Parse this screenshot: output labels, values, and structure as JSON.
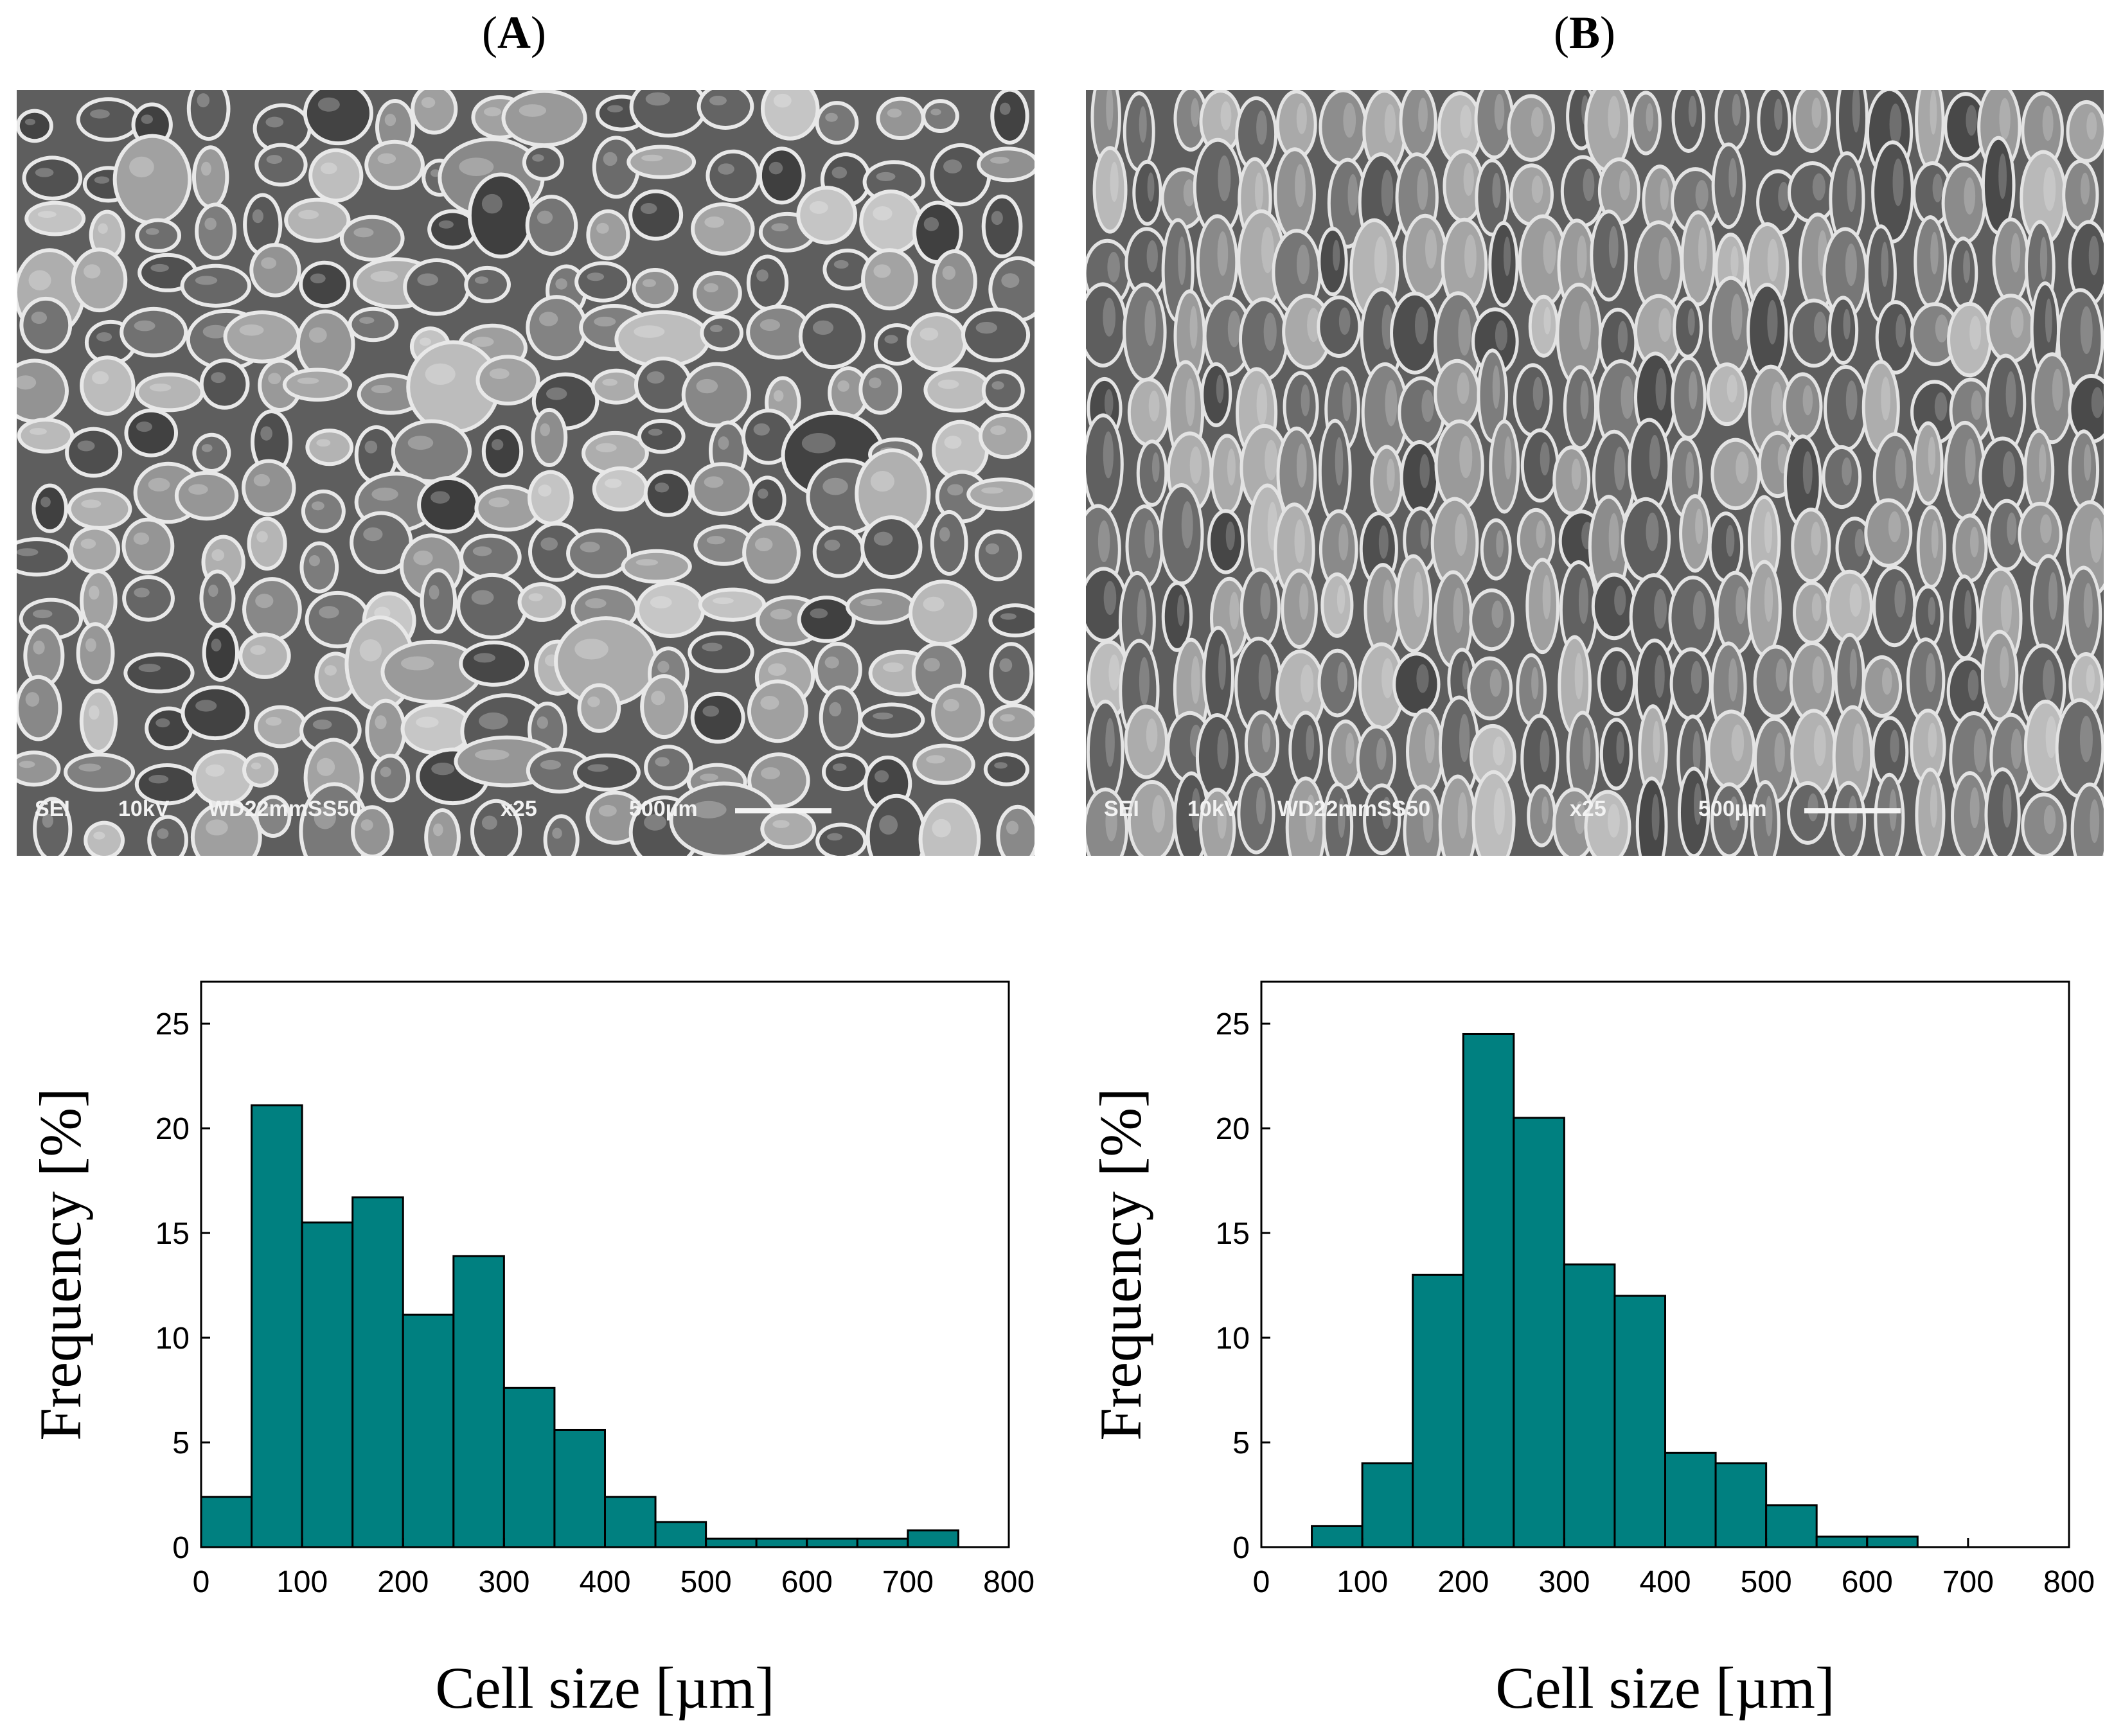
{
  "panels": [
    {
      "label": "A",
      "sem": {
        "detector": "SEI",
        "voltage": "10kV",
        "working_distance": "WD22mmSS50",
        "magnification": "x25",
        "scale": "500µm",
        "texture": "round"
      }
    },
    {
      "label": "B",
      "sem": {
        "detector": "SEI",
        "voltage": "10kV",
        "working_distance": "WD22mmSS50",
        "magnification": "x25",
        "scale": "500µm",
        "texture": "elongated"
      }
    }
  ],
  "colors": {
    "bar_fill": "#008080",
    "bar_stroke": "#000000",
    "axis": "#000000"
  },
  "chart_data": [
    {
      "type": "bar",
      "title": "",
      "xlabel": "Cell size [µm]",
      "ylabel": "Frequency [%]",
      "bin_width": 50,
      "bin_starts": [
        0,
        50,
        100,
        150,
        200,
        250,
        300,
        350,
        400,
        450,
        500,
        550,
        600,
        650,
        700
      ],
      "values": [
        2.4,
        21.1,
        15.5,
        16.7,
        11.1,
        13.9,
        7.6,
        5.6,
        2.4,
        1.2,
        0.4,
        0.4,
        0.4,
        0.4,
        0.8
      ],
      "xlim": [
        0,
        800
      ],
      "ylim": [
        0,
        27
      ],
      "xticks": [
        0,
        100,
        200,
        300,
        400,
        500,
        600,
        700,
        800
      ],
      "yticks": [
        0,
        5,
        10,
        15,
        20,
        25
      ],
      "grid": false
    },
    {
      "type": "bar",
      "title": "",
      "xlabel": "Cell size [µm]",
      "ylabel": "Frequency [%]",
      "bin_width": 50,
      "bin_starts": [
        50,
        100,
        150,
        200,
        250,
        300,
        350,
        400,
        450,
        500,
        550,
        600
      ],
      "values": [
        1.0,
        4.0,
        13.0,
        24.5,
        20.5,
        13.5,
        12.0,
        4.5,
        4.0,
        2.0,
        0.5,
        0.5
      ],
      "xlim": [
        0,
        800
      ],
      "ylim": [
        0,
        27
      ],
      "xticks": [
        0,
        100,
        200,
        300,
        400,
        500,
        600,
        700,
        800
      ],
      "yticks": [
        0,
        5,
        10,
        15,
        20,
        25
      ],
      "grid": false
    }
  ]
}
